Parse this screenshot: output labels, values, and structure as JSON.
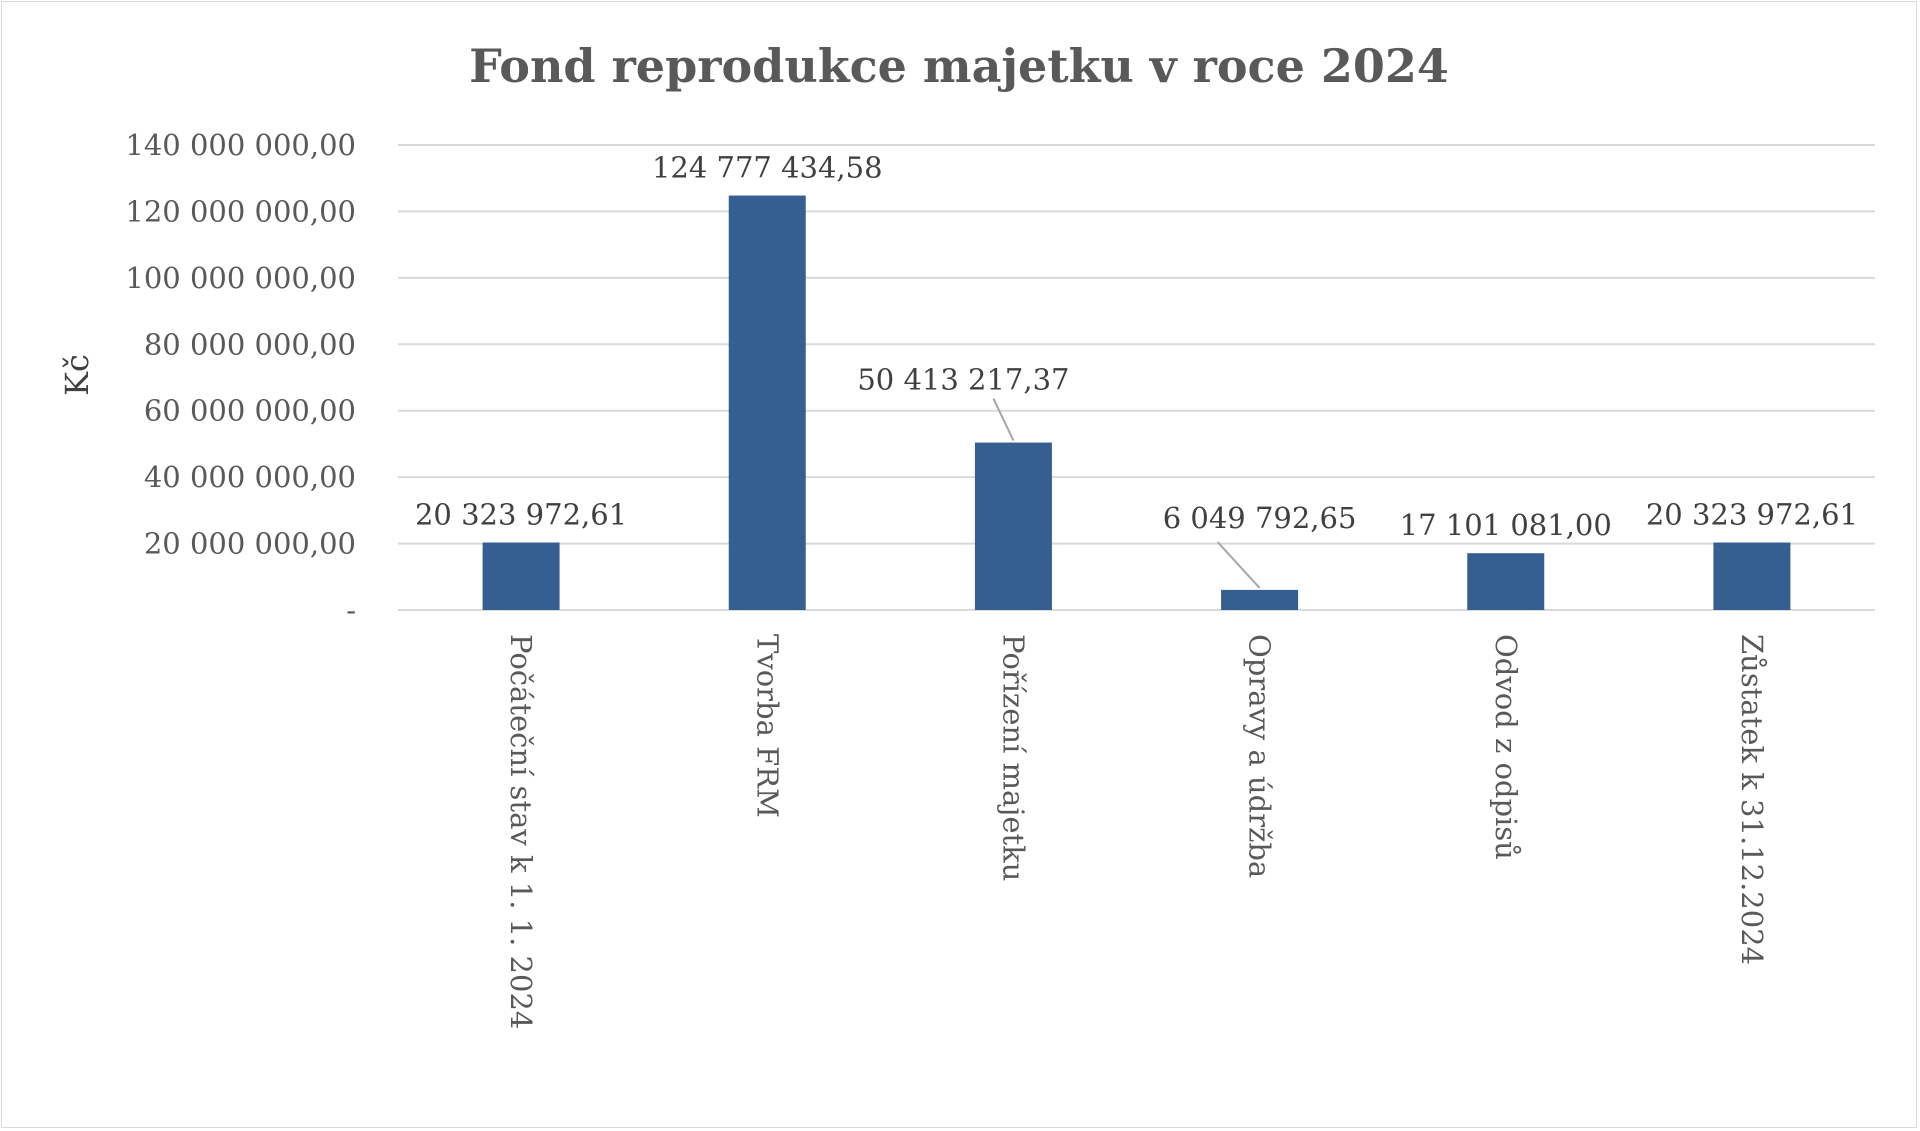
{
  "chart_data": {
    "type": "bar",
    "title": "Fond reprodukce majetku v roce 2024",
    "ylabel": "Kč",
    "xlabel": "",
    "ylim": [
      0,
      140000000
    ],
    "ytick_values": [
      0,
      20000000,
      40000000,
      60000000,
      80000000,
      100000000,
      120000000,
      140000000
    ],
    "ytick_labels": [
      "-",
      "20 000 000,00",
      "40 000 000,00",
      "60 000 000,00",
      "80 000 000,00",
      "100 000 000,00",
      "120 000 000,00",
      "140 000 000,00"
    ],
    "grid": true,
    "legend": "none",
    "bar_color": "#355e91",
    "categories": [
      "Počáteční stav k 1. 1. 2024",
      "Tvorba FRM",
      "Pořízení majetku",
      "Opravy a údržba",
      "Odvod z odpisů",
      "Zůstatek k 31.12.2024"
    ],
    "values": [
      20323972.61,
      124777434.58,
      50413217.37,
      6049792.65,
      17101081.0,
      20323972.61
    ],
    "data_labels": [
      "20 323 972,61",
      "124 777 434,58",
      "50 413 217,37",
      "6 049 792,65",
      "17 101 081,00",
      "20 323 972,61"
    ]
  }
}
